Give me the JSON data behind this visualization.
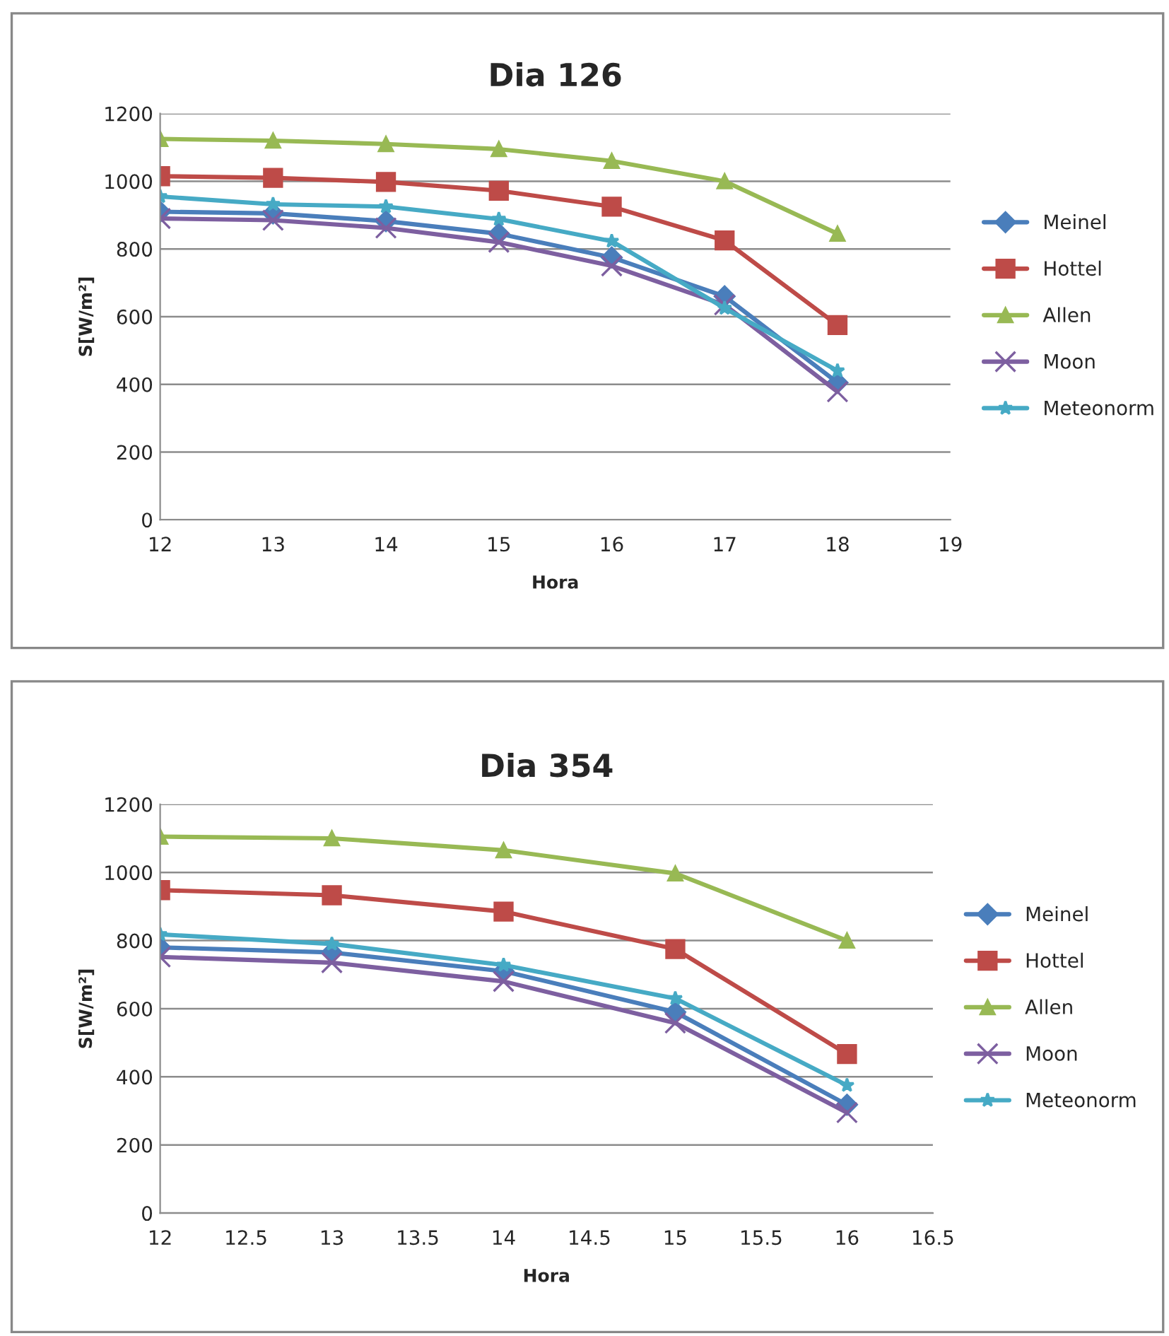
{
  "chart_data": [
    {
      "type": "line",
      "title": "Dia 126",
      "xlabel": "Hora",
      "ylabel": "S[W/m²]",
      "x": [
        12,
        13,
        14,
        15,
        16,
        17,
        18
      ],
      "xlim": [
        12,
        19
      ],
      "xticks": [
        12,
        13,
        14,
        15,
        16,
        17,
        18,
        19
      ],
      "ylim": [
        0,
        1200
      ],
      "yticks": [
        0,
        200,
        400,
        600,
        800,
        1000,
        1200
      ],
      "grid": "y",
      "legend": "right",
      "line_style": "solid",
      "series": [
        {
          "name": "Meinel",
          "color": "#4a7ebb",
          "marker": "diamond",
          "values": [
            910,
            905,
            882,
            845,
            775,
            660,
            405
          ]
        },
        {
          "name": "Hottel",
          "color": "#be4b48",
          "marker": "square",
          "values": [
            1015,
            1010,
            998,
            972,
            925,
            825,
            575
          ]
        },
        {
          "name": "Allen",
          "color": "#98b954",
          "marker": "triangle",
          "values": [
            1125,
            1120,
            1110,
            1095,
            1060,
            1000,
            845
          ]
        },
        {
          "name": "Moon",
          "color": "#7d5fa0",
          "marker": "cross",
          "values": [
            890,
            885,
            862,
            820,
            750,
            635,
            378
          ]
        },
        {
          "name": "Meteonorm",
          "color": "#46aac5",
          "marker": "star",
          "values": [
            955,
            932,
            925,
            888,
            823,
            625,
            440
          ]
        }
      ]
    },
    {
      "type": "line",
      "title": "Dia 354",
      "xlabel": "Hora",
      "ylabel": "S[W/m²]",
      "x": [
        12,
        13,
        14,
        15,
        16
      ],
      "xlim": [
        12,
        16.5
      ],
      "xticks": [
        12,
        12.5,
        13,
        13.5,
        14,
        14.5,
        15,
        15.5,
        16,
        16.5
      ],
      "ylim": [
        0,
        1200
      ],
      "yticks": [
        0,
        200,
        400,
        600,
        800,
        1000,
        1200
      ],
      "grid": "y",
      "legend": "right",
      "line_style": "solid",
      "series": [
        {
          "name": "Meinel",
          "color": "#4a7ebb",
          "marker": "diamond",
          "values": [
            780,
            765,
            710,
            590,
            318
          ]
        },
        {
          "name": "Hottel",
          "color": "#be4b48",
          "marker": "square",
          "values": [
            948,
            933,
            885,
            775,
            467
          ]
        },
        {
          "name": "Allen",
          "color": "#98b954",
          "marker": "triangle",
          "values": [
            1105,
            1100,
            1065,
            997,
            800
          ]
        },
        {
          "name": "Moon",
          "color": "#7d5fa0",
          "marker": "cross",
          "values": [
            752,
            735,
            680,
            558,
            295
          ]
        },
        {
          "name": "Meteonorm",
          "color": "#46aac5",
          "marker": "star",
          "values": [
            818,
            790,
            728,
            630,
            375
          ]
        }
      ]
    }
  ]
}
